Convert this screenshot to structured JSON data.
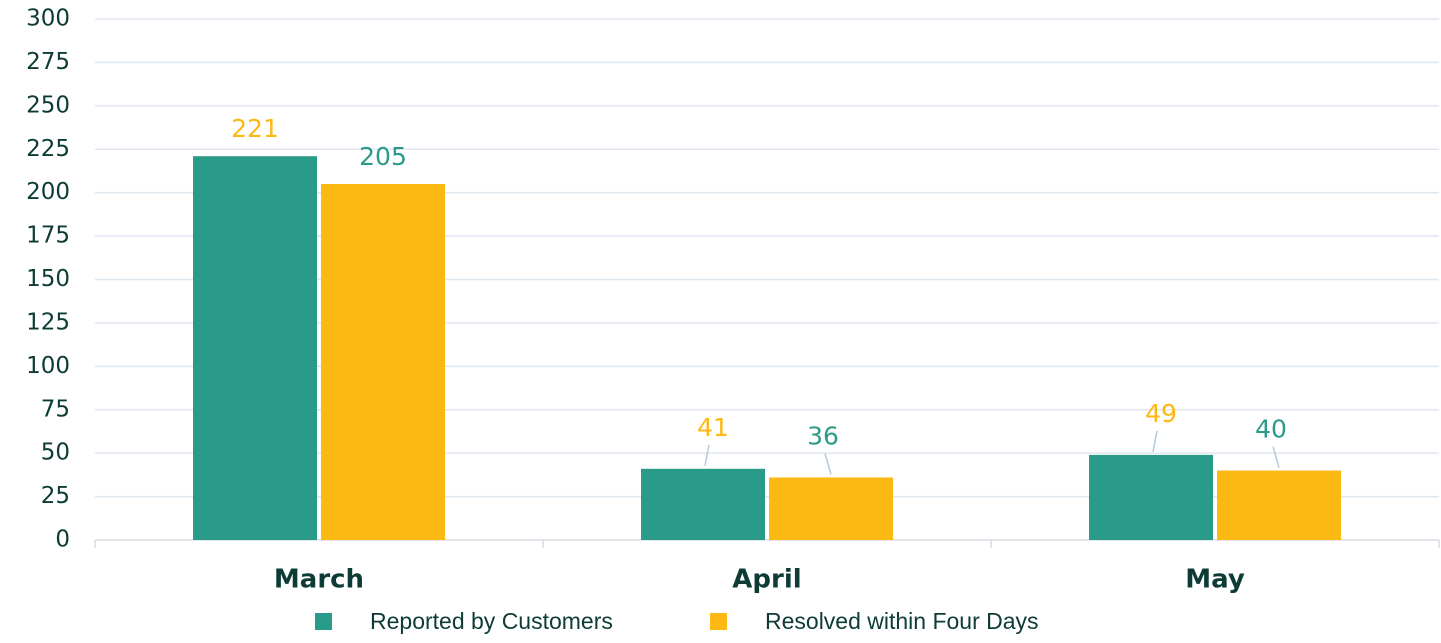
{
  "chart_data": {
    "type": "bar",
    "categories": [
      "March",
      "April",
      "May"
    ],
    "series": [
      {
        "name": "Reported by Customers",
        "color": "#2a9a8a",
        "values": [
          221,
          41,
          49
        ]
      },
      {
        "name": "Resolved within Four Days",
        "color": "#fdb913",
        "values": [
          205,
          36,
          40
        ]
      }
    ],
    "ylim": [
      0,
      300
    ],
    "yticks": [
      0,
      25,
      50,
      75,
      100,
      125,
      150,
      175,
      200,
      225,
      250,
      275,
      300
    ],
    "grid": true,
    "legend": "bottom"
  }
}
